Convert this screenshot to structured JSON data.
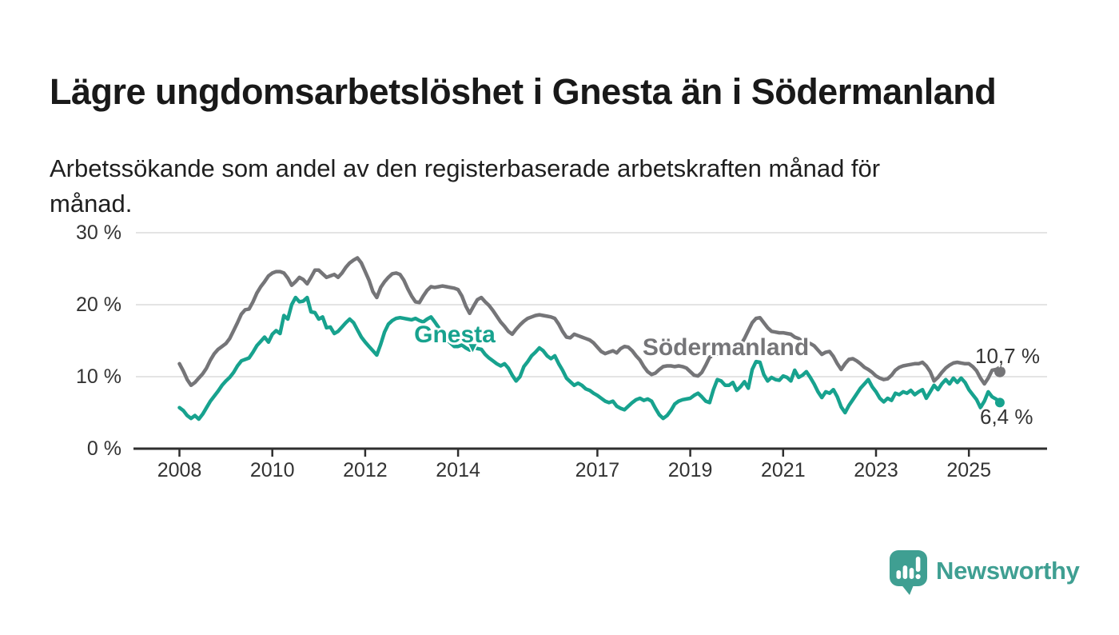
{
  "header": {
    "title": "Lägre ungdomsarbetslöshet i Gnesta än i Södermanland",
    "subtitle": "Arbetssökande som andel av den registerbaserade arbetskraften månad för\nmånad."
  },
  "chart_data": {
    "type": "line",
    "title": "Lägre ungdomsarbetslöshet i Gnesta än i Södermanland",
    "xlabel": "",
    "ylabel": "Arbetssökande som andel av den registerbaserade arbetskraften",
    "x_start_year": 2008,
    "points_per_year": 12,
    "x_end": "2025-09",
    "ylim": [
      0,
      30
    ],
    "grid": true,
    "x_ticks": [
      2008,
      2010,
      2012,
      2014,
      2017,
      2019,
      2021,
      2023,
      2025
    ],
    "y_ticks": [
      0,
      10,
      20,
      30
    ],
    "y_tick_suffix": " %",
    "axis_color": "#2e2e2e",
    "grid_color": "#dcdcdc",
    "series": [
      {
        "name": "Gnesta",
        "color": "#17a28e",
        "end_label": "6,4 %",
        "end_value": 6.4,
        "values": [
          5.7,
          5.3,
          4.6,
          4.2,
          4.6,
          4.1,
          4.8,
          5.7,
          6.6,
          7.3,
          8.0,
          8.8,
          9.4,
          9.9,
          10.6,
          11.5,
          12.2,
          12.4,
          12.6,
          13.4,
          14.3,
          14.9,
          15.5,
          14.8,
          15.9,
          16.4,
          16.0,
          18.5,
          18.0,
          20.0,
          21.0,
          20.4,
          20.5,
          21.0,
          19.0,
          18.9,
          18.0,
          18.3,
          16.8,
          16.9,
          16.0,
          16.3,
          16.9,
          17.5,
          18.0,
          17.5,
          16.5,
          15.5,
          14.8,
          14.2,
          13.6,
          13.0,
          14.5,
          16.2,
          17.3,
          17.8,
          18.1,
          18.2,
          18.1,
          18.0,
          17.9,
          18.1,
          17.8,
          17.6,
          18.0,
          18.3,
          17.6,
          16.8,
          15.9,
          15.2,
          14.7,
          14.2,
          14.2,
          14.4,
          14.0,
          13.7,
          14.1,
          13.9,
          13.8,
          13.1,
          12.6,
          12.2,
          11.8,
          11.5,
          11.8,
          11.2,
          10.2,
          9.4,
          10.0,
          11.4,
          12.1,
          12.9,
          13.4,
          14.0,
          13.6,
          12.9,
          12.5,
          12.9,
          11.8,
          10.9,
          9.8,
          9.3,
          8.8,
          9.1,
          8.8,
          8.3,
          8.1,
          7.7,
          7.4,
          7.0,
          6.6,
          6.4,
          6.6,
          5.9,
          5.6,
          5.4,
          5.9,
          6.4,
          6.8,
          7.0,
          6.7,
          6.9,
          6.6,
          5.6,
          4.7,
          4.2,
          4.6,
          5.3,
          6.2,
          6.6,
          6.8,
          6.9,
          7.0,
          7.4,
          7.7,
          7.2,
          6.6,
          6.4,
          8.2,
          9.6,
          9.4,
          8.8,
          8.8,
          9.2,
          8.1,
          8.6,
          9.3,
          8.4,
          11.0,
          12.1,
          12.0,
          10.3,
          9.4,
          9.9,
          9.6,
          9.5,
          10.1,
          9.9,
          9.4,
          10.9,
          9.9,
          10.2,
          10.7,
          9.9,
          9.0,
          7.9,
          7.1,
          7.9,
          7.7,
          8.2,
          7.2,
          5.8,
          5.0,
          6.0,
          6.8,
          7.6,
          8.4,
          9.0,
          9.6,
          8.6,
          7.9,
          7.0,
          6.5,
          7.0,
          6.7,
          7.7,
          7.5,
          7.9,
          7.7,
          8.1,
          7.5,
          7.9,
          8.2,
          7.0,
          7.9,
          8.8,
          8.2,
          9.0,
          9.6,
          9.0,
          9.8,
          9.2,
          9.8,
          9.2,
          8.2,
          7.5,
          6.8,
          5.7,
          6.6,
          7.9,
          7.2,
          6.9,
          6.4
        ]
      },
      {
        "name": "Södermanland",
        "color": "#757578",
        "end_label": "10,7 %",
        "end_value": 10.7,
        "values": [
          11.8,
          10.8,
          9.6,
          8.8,
          9.2,
          9.8,
          10.4,
          11.2,
          12.3,
          13.2,
          13.8,
          14.2,
          14.6,
          15.3,
          16.4,
          17.5,
          18.7,
          19.3,
          19.4,
          20.4,
          21.6,
          22.5,
          23.2,
          24.0,
          24.4,
          24.6,
          24.6,
          24.4,
          23.7,
          22.7,
          23.2,
          23.8,
          23.5,
          22.9,
          23.8,
          24.8,
          24.8,
          24.3,
          23.8,
          24.0,
          24.2,
          23.8,
          24.4,
          25.2,
          25.8,
          26.2,
          26.5,
          25.8,
          24.6,
          23.4,
          21.8,
          21.0,
          22.4,
          23.2,
          23.8,
          24.3,
          24.4,
          24.2,
          23.4,
          22.2,
          21.2,
          20.4,
          20.3,
          21.2,
          22.0,
          22.5,
          22.4,
          22.5,
          22.6,
          22.5,
          22.4,
          22.3,
          22.1,
          21.2,
          19.8,
          18.8,
          19.8,
          20.7,
          21.0,
          20.4,
          19.9,
          19.2,
          18.4,
          17.6,
          17.0,
          16.3,
          15.9,
          16.6,
          17.2,
          17.7,
          18.1,
          18.3,
          18.5,
          18.6,
          18.5,
          18.4,
          18.3,
          18.1,
          17.3,
          16.3,
          15.5,
          15.4,
          15.9,
          15.7,
          15.5,
          15.3,
          15.1,
          14.7,
          14.1,
          13.5,
          13.2,
          13.4,
          13.6,
          13.3,
          13.9,
          14.2,
          14.1,
          13.6,
          12.9,
          12.3,
          11.4,
          10.7,
          10.3,
          10.5,
          11.0,
          11.4,
          11.5,
          11.5,
          11.4,
          11.5,
          11.4,
          11.2,
          10.7,
          10.2,
          10.1,
          10.6,
          11.6,
          12.7,
          13.0,
          13.2,
          13.2,
          13.3,
          13.3,
          13.4,
          13.8,
          14.4,
          15.3,
          16.4,
          17.5,
          18.1,
          18.2,
          17.5,
          16.8,
          16.3,
          16.2,
          16.1,
          16.1,
          16.0,
          15.9,
          15.5,
          15.3,
          14.9,
          14.8,
          14.6,
          14.3,
          13.7,
          13.1,
          13.4,
          13.5,
          12.8,
          11.8,
          11.0,
          11.8,
          12.4,
          12.5,
          12.2,
          11.8,
          11.3,
          11.0,
          10.6,
          10.1,
          9.8,
          9.6,
          9.7,
          10.2,
          10.9,
          11.3,
          11.5,
          11.6,
          11.7,
          11.8,
          11.8,
          12.0,
          11.5,
          10.7,
          9.4,
          9.9,
          10.6,
          11.2,
          11.6,
          11.9,
          12.0,
          11.9,
          11.8,
          11.8,
          11.4,
          10.8,
          9.8,
          9.0,
          9.8,
          10.9,
          11.0,
          10.7
        ]
      }
    ]
  },
  "annotations": {
    "arrow_glyph": "▼"
  },
  "footer": {
    "brand": "Newsworthy",
    "brand_color": "#3f9f92"
  }
}
